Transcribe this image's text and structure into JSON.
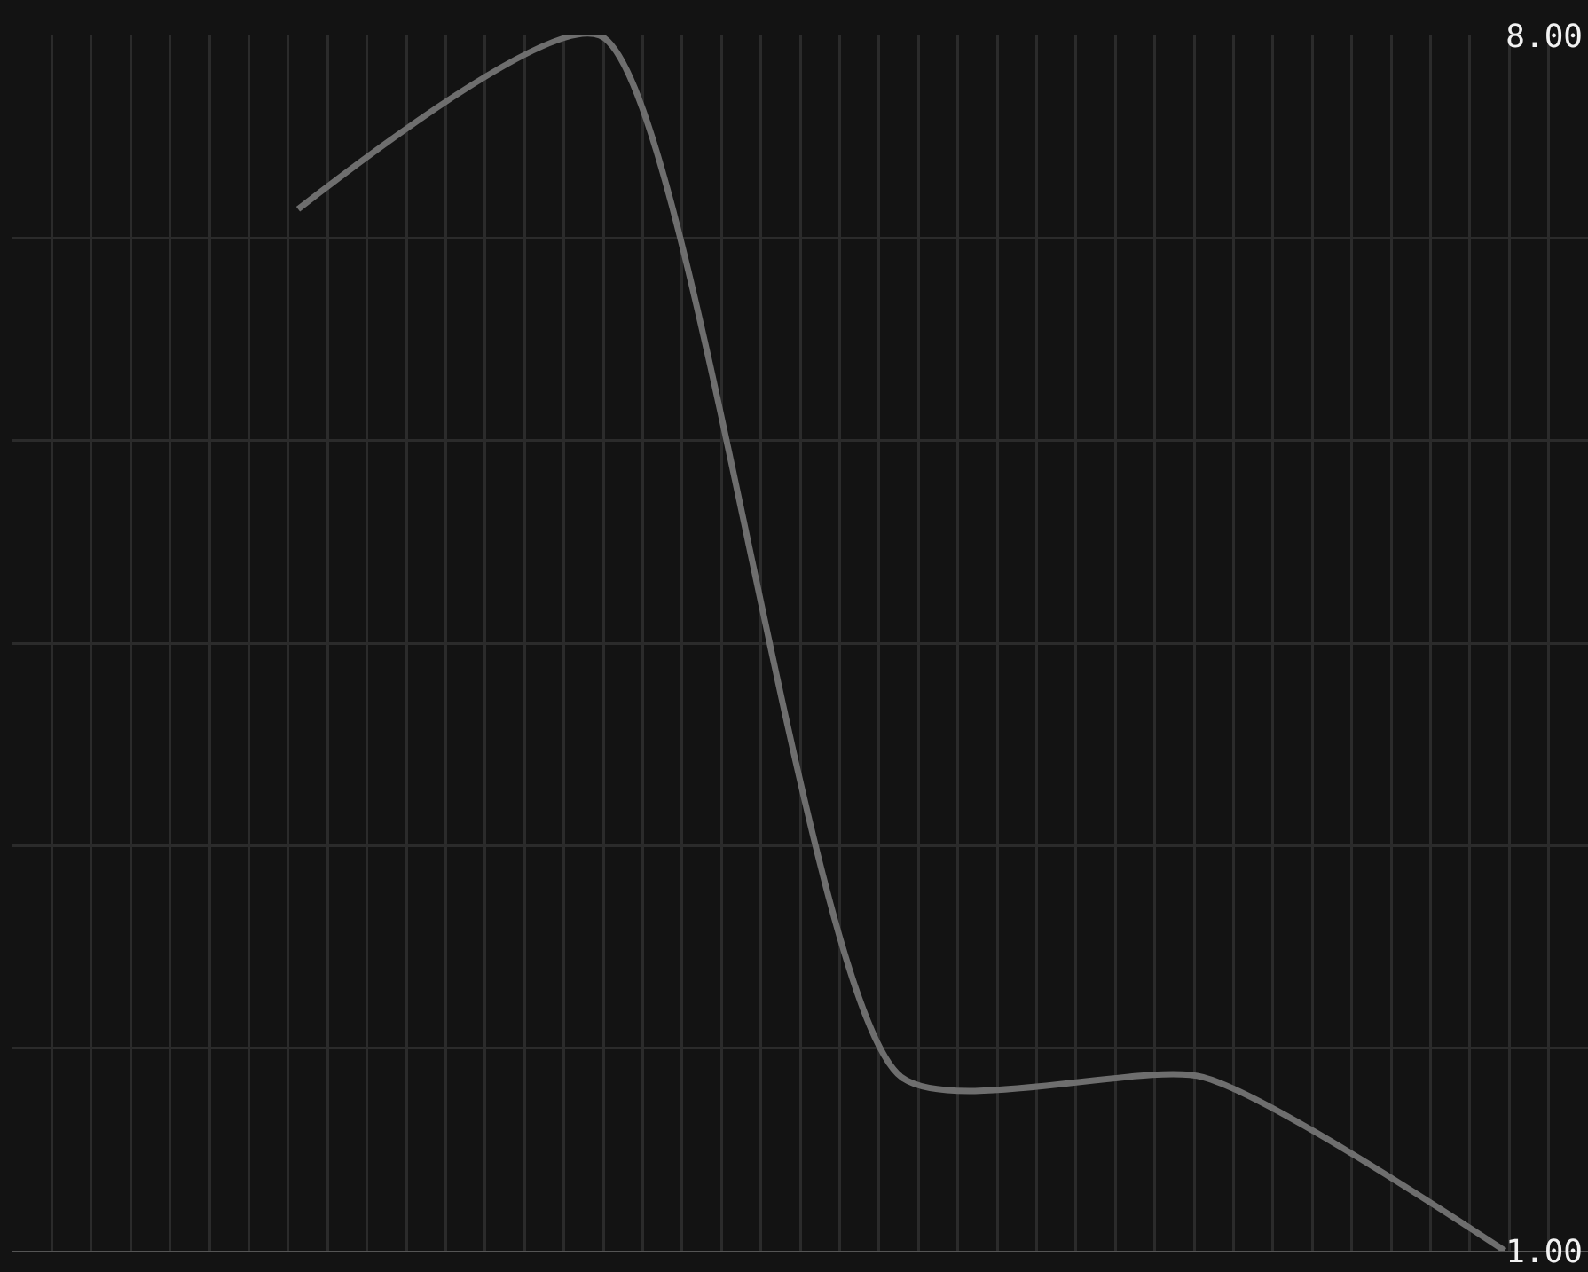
{
  "chart_data": {
    "type": "line",
    "categories": [
      null,
      null,
      null,
      null,
      null
    ],
    "values": [
      7,
      8,
      2,
      2,
      1
    ],
    "color": "#6e6e6e",
    "ylim": [
      1,
      8
    ],
    "yticks": [
      {
        "value": 8,
        "label": "8.00"
      },
      {
        "value": 6.83,
        "label": null
      },
      {
        "value": 5.67,
        "label": null
      },
      {
        "value": 4.5,
        "label": null
      },
      {
        "value": 3.33,
        "label": null
      },
      {
        "value": 2.17,
        "label": null
      },
      {
        "value": 1,
        "label": "1.00"
      }
    ],
    "grid": true,
    "tick_labels": "y"
  }
}
